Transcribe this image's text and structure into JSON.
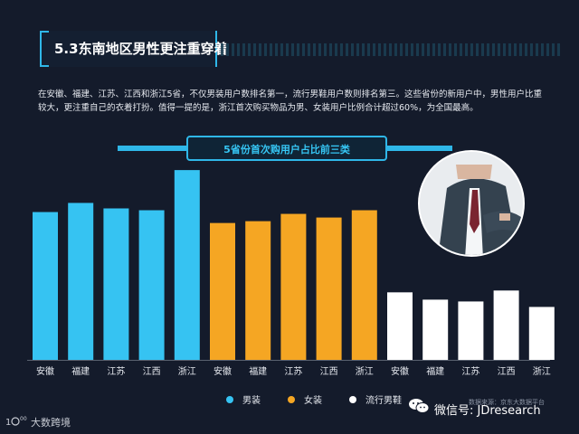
{
  "header": {
    "title": "5.3东南地区男性更注重穿着",
    "paragraph": "在安徽、福建、江苏、江西和浙江5省，不仅男装用户数排名第一，流行男鞋用户数则排名第三。这些省份的新用户中，男性用户比重较大，更注重自己的衣着打扮。值得一提的是，浙江首次购买物品为男、女装用户比例合计超过60%，为全国最高。"
  },
  "chart_data": {
    "type": "bar",
    "title": "5省份首次购用户占比前三类",
    "categories": [
      "安徽",
      "福建",
      "江苏",
      "江西",
      "浙江"
    ],
    "series": [
      {
        "name": "男装",
        "color": "#36c3f2",
        "values": [
          81,
          86,
          83,
          82,
          104
        ]
      },
      {
        "name": "女装",
        "color": "#f5a623",
        "values": [
          75,
          76,
          80,
          78,
          82
        ]
      },
      {
        "name": "流行男鞋",
        "color": "#ffffff",
        "values": [
          37,
          33,
          32,
          38,
          29
        ]
      }
    ],
    "ylim": [
      0,
      110
    ],
    "grid": false,
    "legend": "bottom"
  },
  "footer": {
    "wechat": "微信号: JDresearch",
    "source": "数据来源：京东大数据平台",
    "brand": "大数跨境"
  }
}
